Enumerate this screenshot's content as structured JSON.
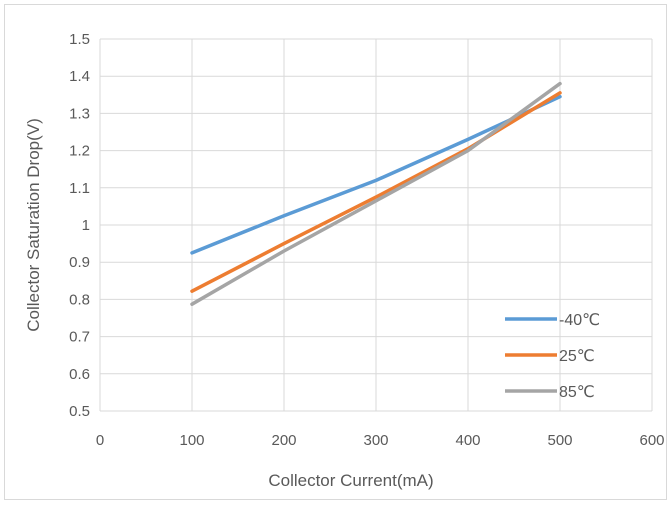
{
  "chart_data": {
    "type": "line",
    "title": "",
    "xlabel": "Collector Current(mA)",
    "ylabel": "Collector Saturation Drop(V)",
    "xlim": [
      0,
      600
    ],
    "ylim": [
      0.5,
      1.5
    ],
    "x_ticks": [
      0,
      100,
      200,
      300,
      400,
      500,
      600
    ],
    "y_ticks": [
      0.5,
      0.6,
      0.7,
      0.8,
      0.9,
      1,
      1.1,
      1.2,
      1.3,
      1.4,
      1.5
    ],
    "grid": "horizontal and vertical",
    "legend_position": "bottom-right",
    "series": [
      {
        "name": "-40℃",
        "color": "#5b9bd5",
        "x": [
          100,
          200,
          300,
          400,
          500
        ],
        "y": [
          0.925,
          1.025,
          1.12,
          1.23,
          1.345
        ]
      },
      {
        "name": "25℃",
        "color": "#ed7d31",
        "x": [
          100,
          200,
          300,
          400,
          500
        ],
        "y": [
          0.822,
          0.95,
          1.075,
          1.205,
          1.355
        ]
      },
      {
        "name": "85℃",
        "color": "#a5a5a5",
        "x": [
          100,
          200,
          300,
          400,
          500
        ],
        "y": [
          0.787,
          0.93,
          1.065,
          1.2,
          1.38
        ]
      }
    ]
  }
}
